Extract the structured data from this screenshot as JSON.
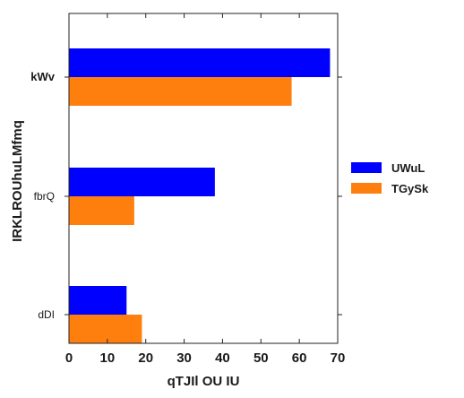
{
  "chart_data": {
    "type": "bar",
    "orientation": "horizontal",
    "categories": [
      "kWv",
      "fbrQ",
      "dDI"
    ],
    "series": [
      {
        "name": "UWuL",
        "color": "#0000ff",
        "values": [
          68,
          38,
          15
        ]
      },
      {
        "name": "TGySk",
        "color": "#ff7f0e",
        "values": [
          58,
          17,
          19
        ]
      }
    ],
    "xlabel": "qTJIl OU IU",
    "ylabel": "IRKLROUhuLMfmq",
    "xlim": [
      0,
      70
    ],
    "xticks": [
      "0",
      "10",
      "20",
      "30",
      "40",
      "50",
      "60",
      "70"
    ],
    "grid": false,
    "legend_position": "right"
  }
}
